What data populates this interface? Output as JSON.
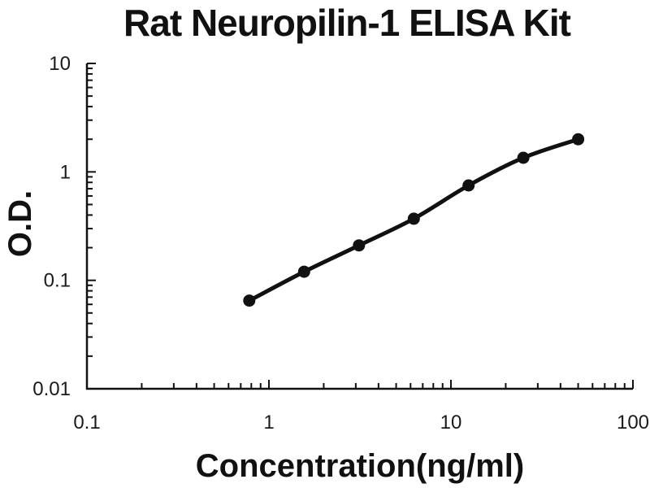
{
  "chart_data": {
    "type": "line",
    "title": "Rat Neuropilin-1 ELISA Kit",
    "xlabel": "Concentration(ng/ml)",
    "ylabel": "O.D.",
    "x_scale": "log",
    "y_scale": "log",
    "xlim": [
      0.1,
      100
    ],
    "ylim": [
      0.01,
      10
    ],
    "x_tick_labels": [
      "0.1",
      "1",
      "10",
      "100"
    ],
    "y_tick_labels": [
      "10",
      "1",
      "0.1",
      "0.01"
    ],
    "grid": false,
    "legend": false,
    "marker": "filled-circle",
    "line_color": "#111111",
    "marker_color": "#111111",
    "background_color": "#ffffff",
    "x": [
      0.78,
      1.56,
      3.125,
      6.25,
      12.5,
      25,
      50
    ],
    "y": [
      0.065,
      0.12,
      0.21,
      0.37,
      0.75,
      1.35,
      2.0
    ]
  }
}
